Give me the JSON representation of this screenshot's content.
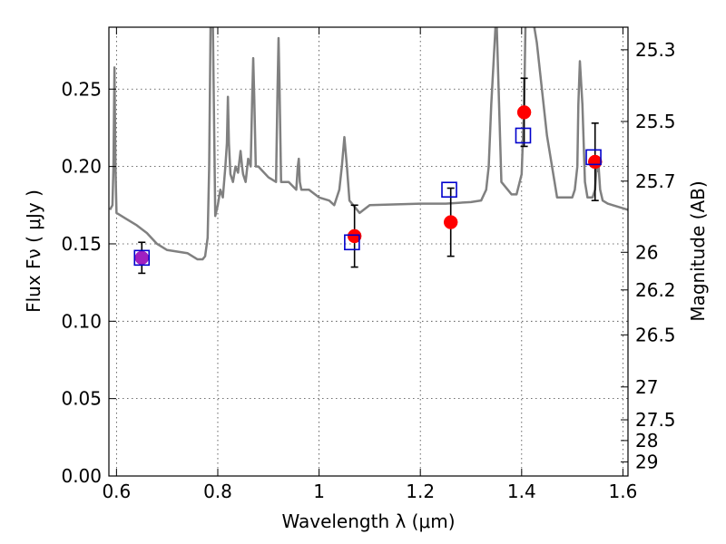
{
  "chart_data": {
    "type": "scatter",
    "xlabel": "Wavelength  λ (μm)",
    "ylabel": "Flux  Fν  ( μJy )",
    "y2label": "Magnitude (AB)",
    "xlim": [
      0.585,
      1.61
    ],
    "ylim": [
      0.0,
      0.29
    ],
    "xticks": [
      0.6,
      0.8,
      1.0,
      1.2,
      1.4,
      1.6
    ],
    "xtick_labels": [
      "0.6",
      "0.8",
      "1",
      "1.2",
      "1.4",
      "1.6"
    ],
    "yticks": [
      0.0,
      0.05,
      0.1,
      0.15,
      0.2,
      0.25
    ],
    "ytick_labels": [
      "0.00",
      "0.05",
      "0.10",
      "0.15",
      "0.20",
      "0.25"
    ],
    "y2ticks": [
      25.3,
      25.5,
      25.7,
      26,
      26.2,
      26.5,
      27,
      27.5,
      28,
      29
    ],
    "y2tick_labels": [
      "25.3",
      "25.5",
      "25.7",
      "26",
      "26.2",
      "26.5",
      "27",
      "27.5",
      "28",
      "29"
    ],
    "grid": true,
    "colors": {
      "model": "#808080",
      "observed": "#ff0000",
      "synthetic": "#0000cc",
      "errorbar": "#000000",
      "overlap": "#a020c0"
    },
    "series": [
      {
        "kind": "line",
        "x": [
          0.587,
          0.592,
          0.594,
          0.596,
          0.598,
          0.6,
          0.62,
          0.64,
          0.66,
          0.68,
          0.7,
          0.72,
          0.74,
          0.76,
          0.77,
          0.775,
          0.78,
          0.783,
          0.786,
          0.79,
          0.795,
          0.8,
          0.805,
          0.81,
          0.815,
          0.818,
          0.82,
          0.822,
          0.825,
          0.83,
          0.835,
          0.84,
          0.845,
          0.848,
          0.85,
          0.855,
          0.86,
          0.865,
          0.868,
          0.87,
          0.872,
          0.875,
          0.88,
          0.9,
          0.915,
          0.918,
          0.92,
          0.922,
          0.925,
          0.94,
          0.955,
          0.958,
          0.96,
          0.962,
          0.965,
          0.98,
          1.0,
          1.02,
          1.03,
          1.04,
          1.045,
          1.05,
          1.055,
          1.06,
          1.08,
          1.1,
          1.2,
          1.25,
          1.3,
          1.32,
          1.33,
          1.335,
          1.34,
          1.345,
          1.35,
          1.36,
          1.38,
          1.39,
          1.4,
          1.405,
          1.408,
          1.41,
          1.412,
          1.415,
          1.42,
          1.43,
          1.45,
          1.47,
          1.49,
          1.5,
          1.505,
          1.51,
          1.512,
          1.515,
          1.52,
          1.525,
          1.53,
          1.535,
          1.54,
          1.545,
          1.548,
          1.55,
          1.552,
          1.555,
          1.56,
          1.57,
          1.58,
          1.6,
          1.61
        ],
        "y": [
          0.172,
          0.175,
          0.2,
          0.264,
          0.2,
          0.17,
          0.166,
          0.162,
          0.157,
          0.15,
          0.146,
          0.145,
          0.144,
          0.14,
          0.14,
          0.142,
          0.154,
          0.2,
          0.3,
          0.3,
          0.168,
          0.175,
          0.185,
          0.18,
          0.2,
          0.215,
          0.245,
          0.215,
          0.195,
          0.19,
          0.2,
          0.196,
          0.21,
          0.2,
          0.195,
          0.19,
          0.205,
          0.2,
          0.245,
          0.27,
          0.245,
          0.2,
          0.2,
          0.193,
          0.19,
          0.25,
          0.283,
          0.25,
          0.19,
          0.19,
          0.185,
          0.2,
          0.205,
          0.19,
          0.185,
          0.185,
          0.18,
          0.178,
          0.175,
          0.185,
          0.2,
          0.219,
          0.2,
          0.178,
          0.17,
          0.175,
          0.176,
          0.176,
          0.177,
          0.178,
          0.185,
          0.2,
          0.24,
          0.27,
          0.3,
          0.19,
          0.182,
          0.182,
          0.195,
          0.24,
          0.3,
          0.3,
          0.3,
          0.3,
          0.3,
          0.28,
          0.22,
          0.18,
          0.18,
          0.18,
          0.185,
          0.2,
          0.24,
          0.268,
          0.24,
          0.19,
          0.18,
          0.18,
          0.18,
          0.185,
          0.2,
          0.197,
          0.2,
          0.185,
          0.178,
          0.176,
          0.175,
          0.173,
          0.172
        ]
      },
      {
        "kind": "observed",
        "x": [
          0.65,
          1.07,
          1.26,
          1.405,
          1.545
        ],
        "y": [
          0.141,
          0.155,
          0.164,
          0.235,
          0.203
        ],
        "yerr": [
          0.01,
          0.02,
          0.022,
          0.022,
          0.025
        ]
      },
      {
        "kind": "synthetic",
        "x": [
          0.65,
          1.065,
          1.257,
          1.403,
          1.542
        ],
        "y": [
          0.141,
          0.151,
          0.185,
          0.22,
          0.206
        ]
      }
    ]
  }
}
